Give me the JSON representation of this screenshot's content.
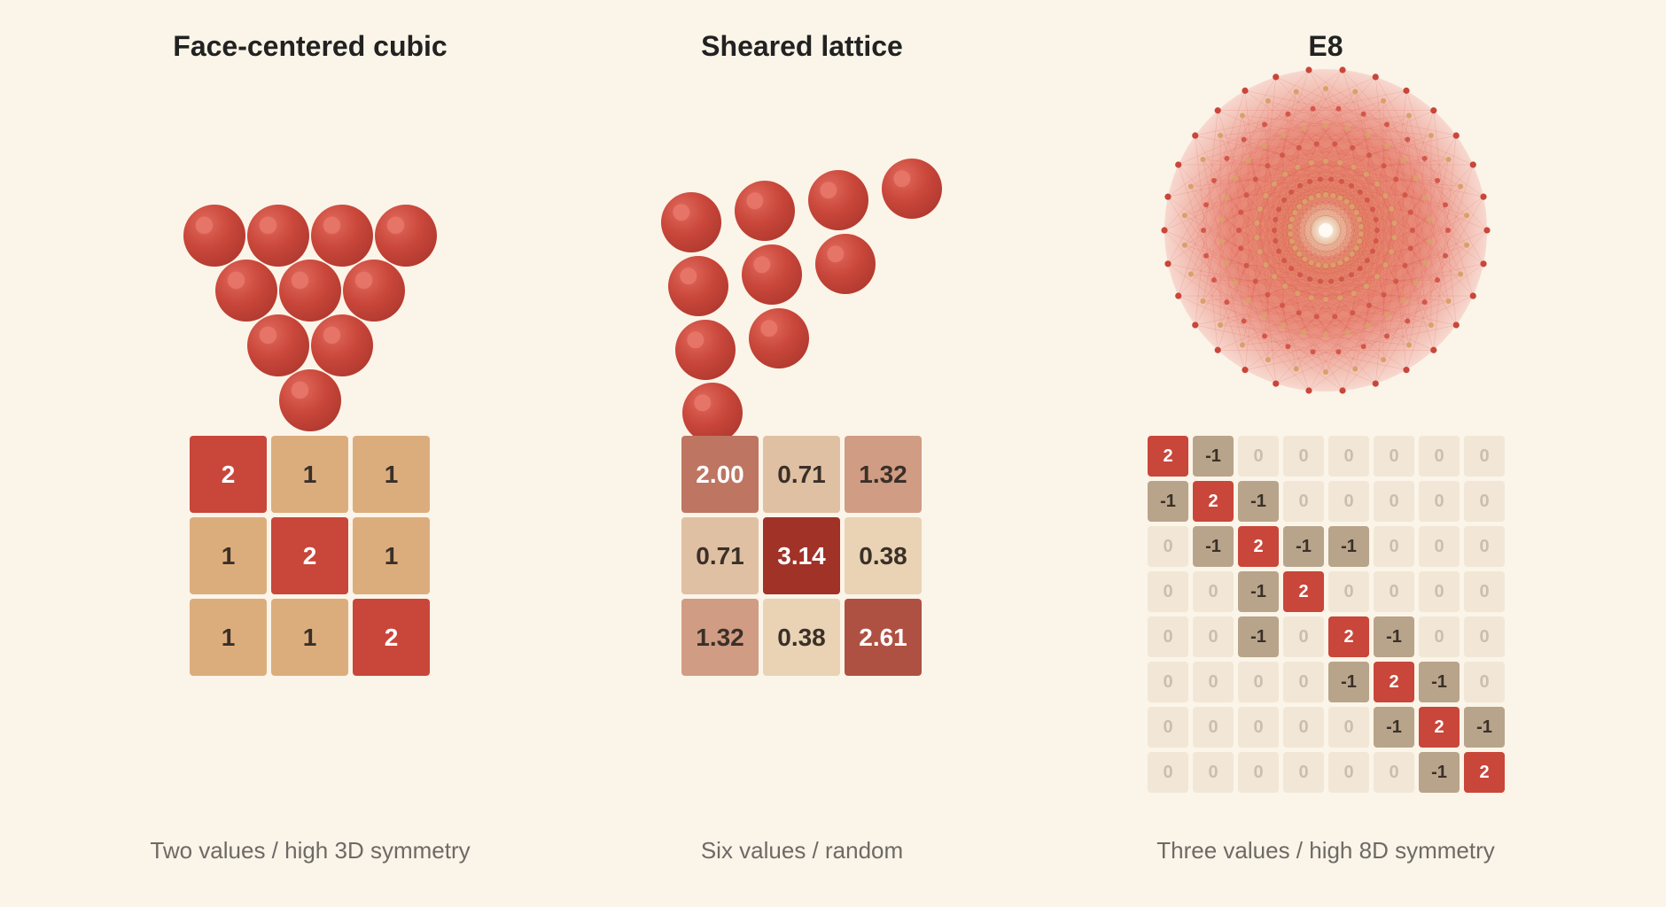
{
  "colors": {
    "background": "#fbf4e8",
    "sphere": "#c9463a",
    "matrix_two": "#c9463a",
    "matrix_one": "#dcad7c",
    "e8_neg": "#b8a48b",
    "e8_zero": "#f2e7d6"
  },
  "panels": [
    {
      "title": "Face-centered cubic",
      "caption": "Two values / high 3D symmetry",
      "matrix": [
        [
          "2",
          "1",
          "1"
        ],
        [
          "1",
          "2",
          "1"
        ],
        [
          "1",
          "1",
          "2"
        ]
      ]
    },
    {
      "title": "Sheared lattice",
      "caption": "Six values / random",
      "matrix": [
        [
          "2.00",
          "0.71",
          "1.32"
        ],
        [
          "0.71",
          "3.14",
          "0.38"
        ],
        [
          "1.32",
          "0.38",
          "2.61"
        ]
      ]
    },
    {
      "title": "E8",
      "caption": "Three values / high 8D symmetry",
      "matrix": [
        [
          "2",
          "-1",
          "0",
          "0",
          "0",
          "0",
          "0",
          "0"
        ],
        [
          "-1",
          "2",
          "-1",
          "0",
          "0",
          "0",
          "0",
          "0"
        ],
        [
          "0",
          "-1",
          "2",
          "-1",
          "-1",
          "0",
          "0",
          "0"
        ],
        [
          "0",
          "0",
          "-1",
          "2",
          "0",
          "0",
          "0",
          "0"
        ],
        [
          "0",
          "0",
          "-1",
          "0",
          "2",
          "-1",
          "0",
          "0"
        ],
        [
          "0",
          "0",
          "0",
          "0",
          "-1",
          "2",
          "-1",
          "0"
        ],
        [
          "0",
          "0",
          "0",
          "0",
          "0",
          "-1",
          "2",
          "-1"
        ],
        [
          "0",
          "0",
          "0",
          "0",
          "0",
          "0",
          "-1",
          "2"
        ]
      ]
    }
  ]
}
